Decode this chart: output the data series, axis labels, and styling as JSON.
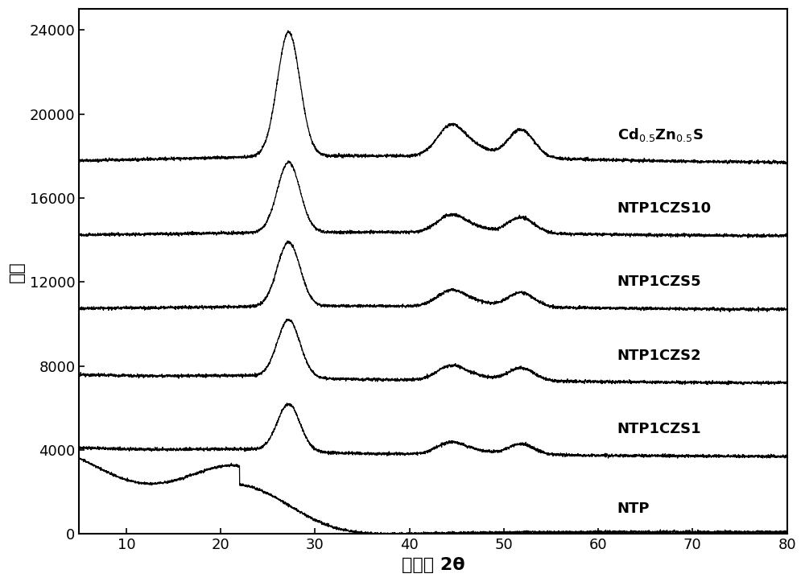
{
  "xlabel": "衍射角 2θ",
  "ylabel": "强度",
  "xlim": [
    5,
    80
  ],
  "ylim": [
    0,
    25000
  ],
  "yticks": [
    0,
    4000,
    8000,
    12000,
    16000,
    20000,
    24000
  ],
  "xticks": [
    10,
    20,
    30,
    40,
    50,
    60,
    70,
    80
  ],
  "labels": [
    "NTP",
    "NTP1CZS1",
    "NTP1CZS2",
    "NTP1CZS5",
    "NTP1CZS10",
    "Cd$_{0.5}$Zn$_{0.5}$S"
  ],
  "offsets": [
    0,
    3500,
    7000,
    10500,
    14000,
    17500
  ],
  "background_color": "#ffffff",
  "line_color": "#000000",
  "font_size": 15,
  "label_font_size": 13,
  "tick_font_size": 13
}
